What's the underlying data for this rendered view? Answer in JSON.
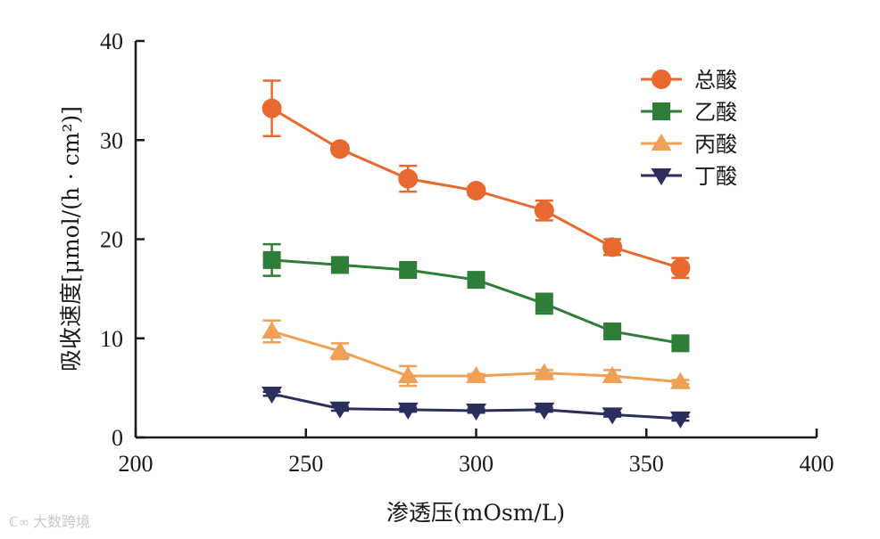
{
  "chart_data": {
    "type": "line",
    "title": "",
    "xlabel": "渗透压(mOsm/L)",
    "ylabel": "吸收速度[μmol/(h · cm²)]",
    "xlim": [
      200,
      400
    ],
    "ylim": [
      0,
      40
    ],
    "xticks": [
      200,
      250,
      300,
      350,
      400
    ],
    "yticks": [
      0,
      10,
      20,
      30,
      40
    ],
    "grid": false,
    "legend_position": "top-right",
    "x": [
      240,
      260,
      280,
      300,
      320,
      340,
      360
    ],
    "series": [
      {
        "name": "总酸",
        "color": "#e8692f",
        "marker": "circle",
        "values": [
          33.2,
          29.1,
          26.1,
          24.9,
          22.9,
          19.2,
          17.1
        ],
        "errors": [
          2.8,
          0.4,
          1.3,
          0.4,
          1.0,
          0.8,
          1.0
        ]
      },
      {
        "name": "乙酸",
        "color": "#2e7d38",
        "marker": "square",
        "values": [
          17.9,
          17.4,
          16.9,
          15.9,
          13.5,
          10.7,
          9.5
        ],
        "errors": [
          1.6,
          0.4,
          0.4,
          0.3,
          1.0,
          0.3,
          0.3
        ]
      },
      {
        "name": "丙酸",
        "color": "#f0a055",
        "marker": "triangle-up",
        "values": [
          10.7,
          8.7,
          6.2,
          6.2,
          6.5,
          6.2,
          5.6
        ],
        "errors": [
          1.1,
          0.8,
          1.0,
          0.2,
          0.3,
          0.6,
          0.2
        ]
      },
      {
        "name": "丁酸",
        "color": "#2b2f5e",
        "marker": "triangle-down",
        "values": [
          4.4,
          2.9,
          2.8,
          2.7,
          2.8,
          2.3,
          1.9
        ],
        "errors": [
          0.2,
          0.2,
          0.2,
          0.2,
          0.2,
          0.2,
          0.2
        ]
      }
    ]
  },
  "watermark": {
    "logo": "ℂ∞",
    "text": "大数跨境"
  }
}
